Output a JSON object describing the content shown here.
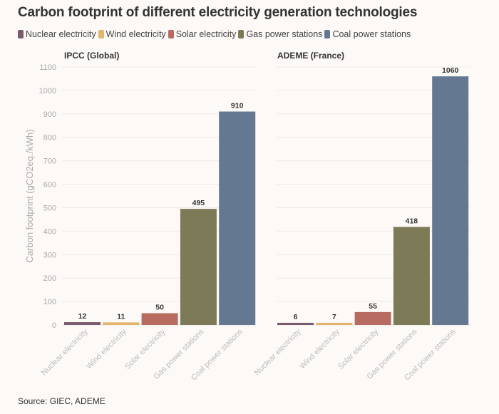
{
  "header": {
    "title": "Carbon footprint of different electricity generation technologies"
  },
  "legend": [
    {
      "label": "Nuclear electricity",
      "color": "#7a5a6e"
    },
    {
      "label": "Wind electricity",
      "color": "#e2b56e"
    },
    {
      "label": "Solar electricity",
      "color": "#b86b60"
    },
    {
      "label": "Gas power stations",
      "color": "#7d7a58"
    },
    {
      "label": "Coal power stations",
      "color": "#647891"
    }
  ],
  "footer": {
    "source": "Source: GIEC, ADEME"
  },
  "chart_data": {
    "type": "bar",
    "title": "Carbon footprint of different electricity generation technologies",
    "ylabel": "Carbon footprint (gCO2eq./kWh)",
    "xlabel": "",
    "ylim": [
      0,
      1100
    ],
    "yticks": [
      0,
      100,
      200,
      300,
      400,
      500,
      600,
      700,
      800,
      900,
      1000,
      1100
    ],
    "grid": true,
    "legend_position": "top-left",
    "categories": [
      "Nuclear electricity",
      "Wind electricity",
      "Solar electricity",
      "Gas power stations",
      "Coal power stations"
    ],
    "colors": [
      "#7a5a6e",
      "#e2b56e",
      "#b86b60",
      "#7d7a58",
      "#647891"
    ],
    "panels": [
      {
        "title": "IPCC (Global)",
        "values": [
          12,
          11,
          50,
          495,
          910
        ]
      },
      {
        "title": "ADEME (France)",
        "values": [
          6,
          7,
          55,
          418,
          1060
        ]
      }
    ],
    "source": "Source: GIEC, ADEME"
  }
}
